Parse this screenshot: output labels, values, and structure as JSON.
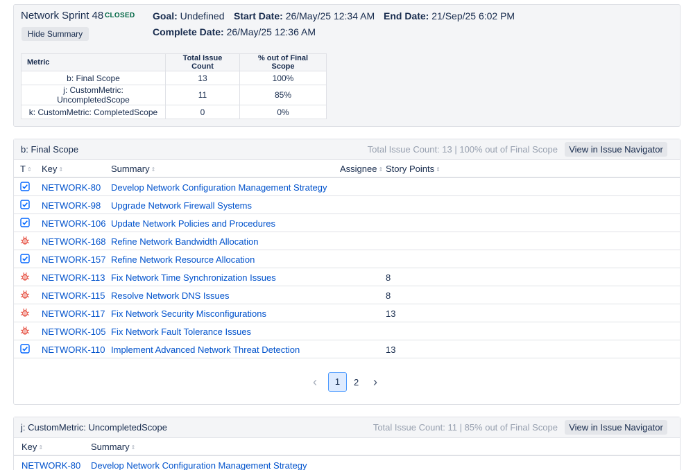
{
  "sprint": {
    "name": "Network Sprint 48",
    "status": "CLOSED",
    "hide_summary_label": "Hide Summary",
    "goal_label": "Goal:",
    "goal_value": "Undefined",
    "start_label": "Start Date:",
    "start_value": "26/May/25 12:34 AM",
    "end_label": "End Date:",
    "end_value": "21/Sep/25 6:02 PM",
    "complete_label": "Complete Date:",
    "complete_value": "26/May/25 12:36 AM"
  },
  "metrics": {
    "headers": [
      "Metric",
      "Total Issue Count",
      "% out of Final Scope"
    ],
    "rows": [
      [
        "b: Final Scope",
        "13",
        "100%"
      ],
      [
        "j: CustomMetric: UncompletedScope",
        "11",
        "85%"
      ],
      [
        "k: CustomMetric: CompletedScope",
        "0",
        "0%"
      ]
    ]
  },
  "final_scope": {
    "title": "b: Final Scope",
    "stats": "Total Issue Count: 13 | 100% out of Final Scope",
    "nav_button": "View in Issue Navigator",
    "columns": {
      "type": "T",
      "key": "Key",
      "summary": "Summary",
      "assignee": "Assignee",
      "points": "Story Points"
    },
    "issues": [
      {
        "type": "task",
        "key": "NETWORK-80",
        "summary": "Develop Network Configuration Management Strategy",
        "points": ""
      },
      {
        "type": "task",
        "key": "NETWORK-98",
        "summary": "Upgrade Network Firewall Systems",
        "points": ""
      },
      {
        "type": "task",
        "key": "NETWORK-106",
        "summary": "Update Network Policies and Procedures",
        "points": ""
      },
      {
        "type": "bug",
        "key": "NETWORK-168",
        "summary": "Refine Network Bandwidth Allocation",
        "points": ""
      },
      {
        "type": "task",
        "key": "NETWORK-157",
        "summary": "Refine Network Resource Allocation",
        "points": ""
      },
      {
        "type": "bug",
        "key": "NETWORK-113",
        "summary": "Fix Network Time Synchronization Issues",
        "points": "8"
      },
      {
        "type": "bug",
        "key": "NETWORK-115",
        "summary": "Resolve Network DNS Issues",
        "points": "8"
      },
      {
        "type": "bug",
        "key": "NETWORK-117",
        "summary": "Fix Network Security Misconfigurations",
        "points": "13"
      },
      {
        "type": "bug",
        "key": "NETWORK-105",
        "summary": "Fix Network Fault Tolerance Issues",
        "points": ""
      },
      {
        "type": "task",
        "key": "NETWORK-110",
        "summary": "Implement Advanced Network Threat Detection",
        "points": "13"
      }
    ],
    "pagination": {
      "current": "1",
      "next": "2"
    }
  },
  "uncompleted_scope": {
    "title": "j: CustomMetric: UncompletedScope",
    "stats": "Total Issue Count: 11 | 85% out of Final Scope",
    "nav_button": "View in Issue Navigator",
    "columns": {
      "key": "Key",
      "summary": "Summary"
    },
    "issues": [
      {
        "key": "NETWORK-80",
        "summary": "Develop Network Configuration Management Strategy"
      }
    ]
  },
  "colors": {
    "link": "#0052cc",
    "task_icon": "#0065ff",
    "bug_icon": "#e5493a",
    "status": "#006644"
  },
  "icons": {
    "task": "checkbox-icon",
    "bug": "bug-icon",
    "sort": "sort-icon",
    "prev": "chevron-left-icon",
    "next": "chevron-right-icon"
  }
}
